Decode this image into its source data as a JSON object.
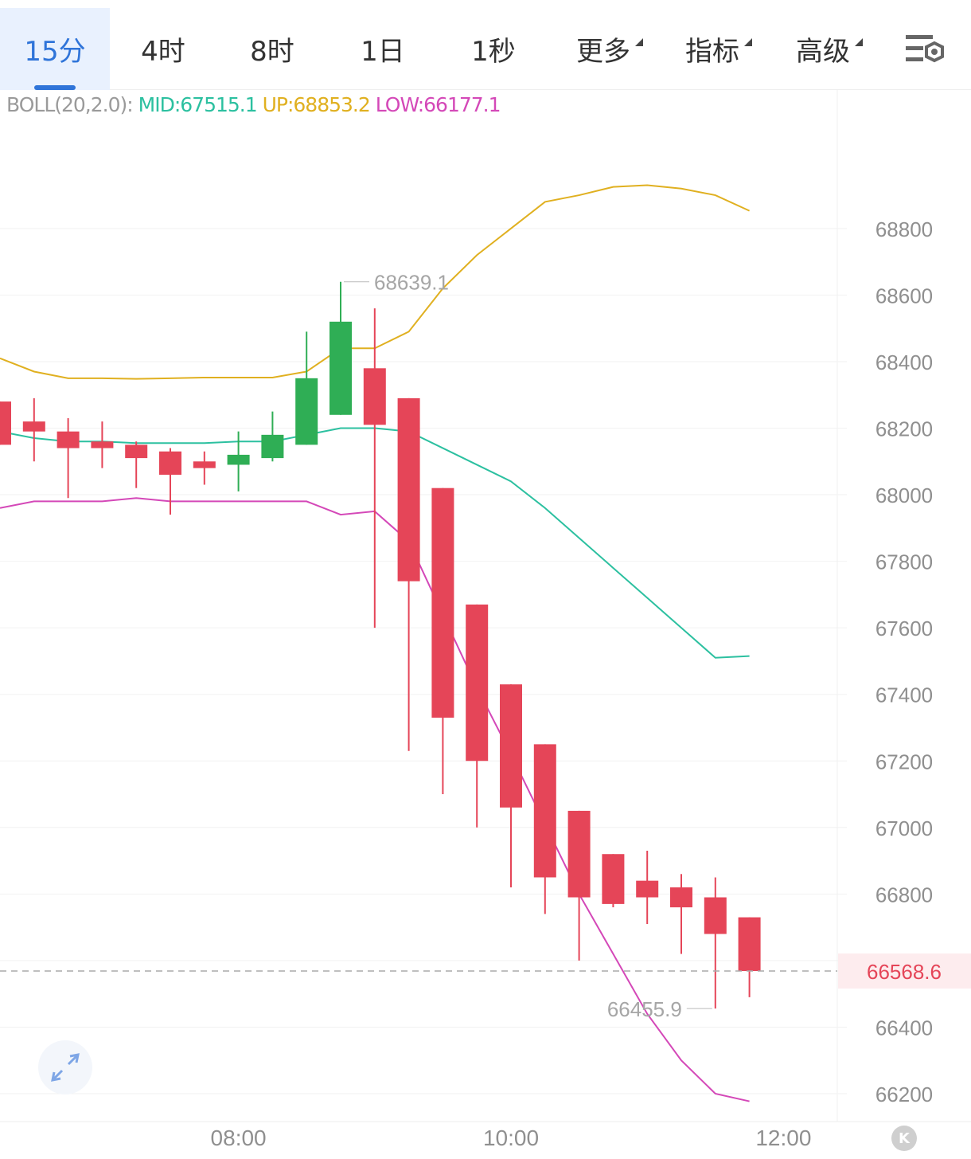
{
  "tabs": [
    {
      "label": "15分",
      "active": true,
      "dropdown": false
    },
    {
      "label": "4时",
      "active": false,
      "dropdown": false
    },
    {
      "label": "8时",
      "active": false,
      "dropdown": false
    },
    {
      "label": "1日",
      "active": false,
      "dropdown": false
    },
    {
      "label": "1秒",
      "active": false,
      "dropdown": false
    },
    {
      "label": "更多",
      "active": false,
      "dropdown": true
    },
    {
      "label": "指标",
      "active": false,
      "dropdown": true
    },
    {
      "label": "高级",
      "active": false,
      "dropdown": true
    }
  ],
  "indicator": {
    "label": "BOLL(20,2.0):",
    "mid": "MID:67515.1",
    "up": "UP:68853.2",
    "low": "LOW:66177.1"
  },
  "icons": {
    "settings": "chart-settings-icon",
    "expand": "expand-icon",
    "logo": "k-logo-icon"
  },
  "logo_text": "K",
  "colors": {
    "rise": "#2fae55",
    "fall": "#e54558",
    "mid": "#2cc0a0",
    "up": "#e0b020",
    "low": "#d448b8",
    "accent": "#2f74d9"
  },
  "chart_data": {
    "type": "candlestick",
    "title": "",
    "xlabel": "",
    "ylabel": "",
    "y_ticks": [
      66200,
      66400,
      66600,
      66800,
      67000,
      67200,
      67400,
      67600,
      67800,
      68000,
      68200,
      68400,
      68600,
      68800
    ],
    "x_ticks": [
      {
        "label": "08:00",
        "index": 7
      },
      {
        "label": "10:00",
        "index": 15
      },
      {
        "label": "12:00",
        "index": 23
      }
    ],
    "grid": true,
    "last_price": "66568.6",
    "high_marker": "68639.1",
    "low_marker": "66455.9",
    "candles": [
      {
        "open": 68280,
        "high": 68280,
        "low": 68150,
        "close": 68150
      },
      {
        "open": 68220,
        "high": 68290,
        "low": 68100,
        "close": 68190
      },
      {
        "open": 68190,
        "high": 68230,
        "low": 67990,
        "close": 68140
      },
      {
        "open": 68160,
        "high": 68220,
        "low": 68080,
        "close": 68140
      },
      {
        "open": 68150,
        "high": 68160,
        "low": 68020,
        "close": 68110
      },
      {
        "open": 68130,
        "high": 68140,
        "low": 67940,
        "close": 68060
      },
      {
        "open": 68100,
        "high": 68130,
        "low": 68030,
        "close": 68080
      },
      {
        "open": 68090,
        "high": 68190,
        "low": 68010,
        "close": 68120
      },
      {
        "open": 68110,
        "high": 68250,
        "low": 68100,
        "close": 68180
      },
      {
        "open": 68150,
        "high": 68490,
        "low": 68150,
        "close": 68350
      },
      {
        "open": 68240,
        "high": 68640,
        "low": 68240,
        "close": 68520
      },
      {
        "open": 68380,
        "high": 68560,
        "low": 67600,
        "close": 68210
      },
      {
        "open": 68290,
        "high": 68290,
        "low": 67230,
        "close": 67740
      },
      {
        "open": 68020,
        "high": 68020,
        "low": 67100,
        "close": 67330
      },
      {
        "open": 67670,
        "high": 67670,
        "low": 67000,
        "close": 67200
      },
      {
        "open": 67430,
        "high": 67430,
        "low": 66820,
        "close": 67060
      },
      {
        "open": 67250,
        "high": 67250,
        "low": 66740,
        "close": 66850
      },
      {
        "open": 67050,
        "high": 67050,
        "low": 66600,
        "close": 66790
      },
      {
        "open": 66920,
        "high": 66920,
        "low": 66760,
        "close": 66770
      },
      {
        "open": 66840,
        "high": 66930,
        "low": 66710,
        "close": 66790
      },
      {
        "open": 66820,
        "high": 66860,
        "low": 66620,
        "close": 66760
      },
      {
        "open": 66790,
        "high": 66850,
        "low": 66455.9,
        "close": 66680
      },
      {
        "open": 66730,
        "high": 66730,
        "low": 66490,
        "close": 66568.6
      }
    ],
    "series": [
      {
        "name": "MID",
        "values": [
          68190,
          68170,
          68160,
          68160,
          68155,
          68155,
          68155,
          68160,
          68160,
          68180,
          68200,
          68200,
          68190,
          68140,
          68090,
          68040,
          67960,
          67870,
          67780,
          67690,
          67600,
          67510,
          67515.1
        ]
      },
      {
        "name": "UP",
        "values": [
          68410,
          68370,
          68350,
          68350,
          68348,
          68350,
          68352,
          68352,
          68352,
          68370,
          68440,
          68440,
          68490,
          68620,
          68720,
          68800,
          68880,
          68900,
          68925,
          68930,
          68920,
          68900,
          68853.2
        ]
      },
      {
        "name": "LOW",
        "values": [
          67960,
          67980,
          67980,
          67980,
          67990,
          67980,
          67980,
          67980,
          67980,
          67980,
          67940,
          67950,
          67860,
          67640,
          67420,
          67220,
          67010,
          66800,
          66620,
          66440,
          66300,
          66200,
          66177.1
        ]
      }
    ]
  }
}
